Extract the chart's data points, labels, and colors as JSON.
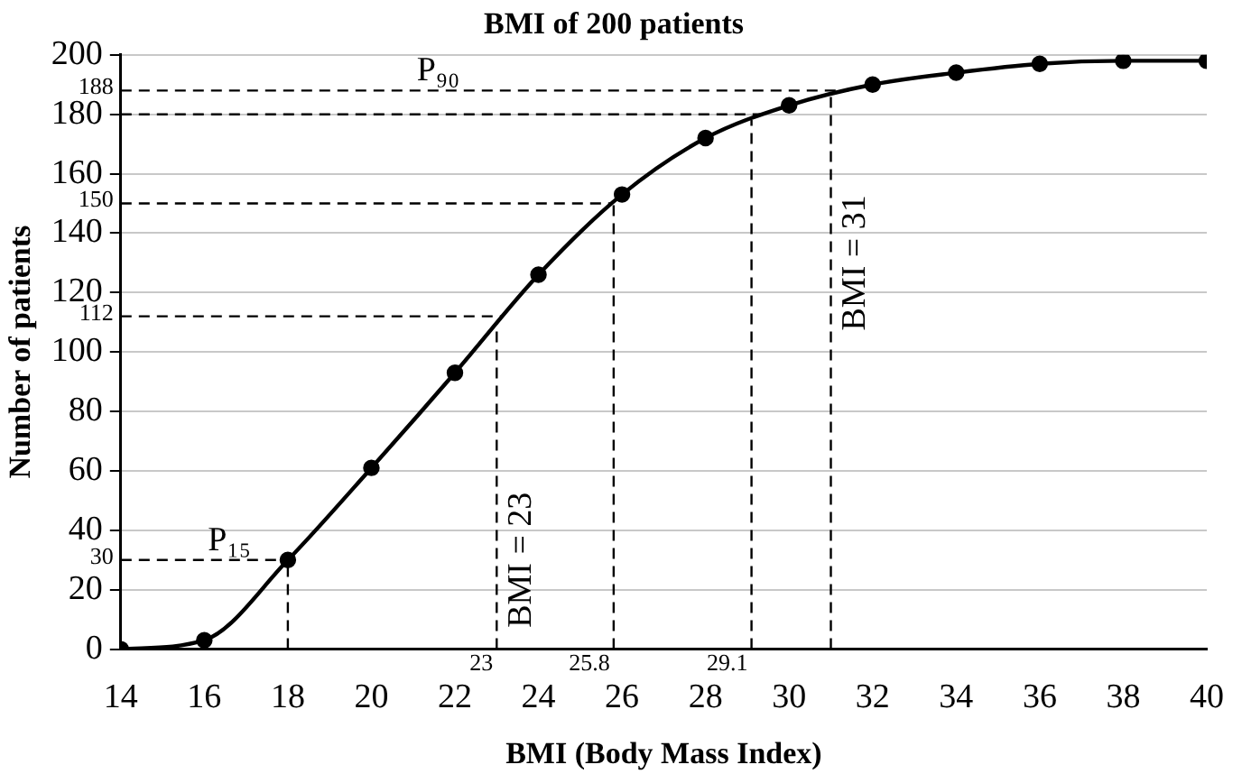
{
  "chart_data": {
    "type": "line",
    "title": "BMI of 200 patients",
    "xlabel": "BMI (Body Mass Index)",
    "ylabel": "Number of patients",
    "x": [
      14,
      16,
      18,
      20,
      22,
      24,
      26,
      28,
      30,
      32,
      34,
      36,
      38,
      40
    ],
    "series": [
      {
        "color": "#000000",
        "values": [
          0,
          3,
          30,
          61,
          93,
          126,
          153,
          172,
          183,
          190,
          194,
          197,
          198,
          198
        ]
      }
    ],
    "xlim": [
      14,
      40
    ],
    "xticks": [
      14,
      16,
      18,
      20,
      22,
      24,
      26,
      28,
      30,
      32,
      34,
      36,
      38,
      40
    ],
    "ylim": [
      0,
      200
    ],
    "yticks": [
      0,
      20,
      40,
      60,
      80,
      100,
      120,
      140,
      160,
      180,
      200
    ],
    "grid": "y",
    "legend": false,
    "marker": "circle",
    "line_style": "solid",
    "ref_lines": [
      {
        "axis": "y",
        "value": 188,
        "label": "188",
        "color": "#000000",
        "line_style": "dashed"
      },
      {
        "axis": "y",
        "value": 180,
        "color": "#000000",
        "line_style": "dashed"
      },
      {
        "axis": "y",
        "value": 150,
        "label": "150",
        "color": "#000000",
        "line_style": "dashed"
      },
      {
        "axis": "y",
        "value": 112,
        "label": "112",
        "color": "#000000",
        "line_style": "dashed"
      },
      {
        "axis": "y",
        "value": 30,
        "label": "30",
        "color": "#000000",
        "line_style": "dashed"
      },
      {
        "axis": "x",
        "value": 18,
        "color": "#000000",
        "line_style": "dashed"
      },
      {
        "axis": "x",
        "value": 23,
        "label": "23",
        "color": "#000000",
        "line_style": "dashed"
      },
      {
        "axis": "x",
        "value": 25.8,
        "label": "25.8",
        "color": "#000000",
        "line_style": "dashed"
      },
      {
        "axis": "x",
        "value": 29.1,
        "label": "29.1",
        "color": "#000000",
        "line_style": "dashed"
      },
      {
        "axis": "x",
        "value": 31,
        "color": "#000000",
        "line_style": "dashed"
      }
    ],
    "annotations": [
      {
        "text": "P₁₅",
        "x": 16.6,
        "y": 30
      },
      {
        "text": "P₉₀",
        "x": 21.6,
        "y": 188
      },
      {
        "text": "BMI = 23",
        "x": 23,
        "y": 30
      },
      {
        "text": "BMI = 31",
        "x": 31,
        "y": 130
      }
    ]
  }
}
